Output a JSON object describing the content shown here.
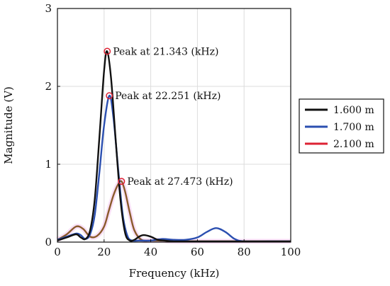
{
  "chart_data": {
    "type": "line",
    "xlabel": "Frequency (kHz)",
    "ylabel": "Magnitude (V)",
    "xlim": [
      0,
      100
    ],
    "ylim": [
      0,
      3
    ],
    "xticks": [
      "0",
      "20",
      "40",
      "60",
      "80",
      "100"
    ],
    "yticks": [
      "0",
      "1",
      "2",
      "3"
    ],
    "grid": true,
    "legend_position": "outside-right",
    "series": [
      {
        "name": "1.600 m",
        "color": "#111111",
        "x": [
          0,
          4,
          8,
          10,
          12,
          14,
          16,
          18,
          20,
          21.3,
          23,
          25,
          27,
          29,
          31,
          33,
          35,
          37,
          40,
          43,
          46,
          50,
          60,
          70,
          80,
          90,
          100
        ],
        "y": [
          0.02,
          0.06,
          0.1,
          0.06,
          0.04,
          0.15,
          0.55,
          1.35,
          2.2,
          2.45,
          2.1,
          1.3,
          0.55,
          0.12,
          0.02,
          0.03,
          0.07,
          0.09,
          0.07,
          0.03,
          0.02,
          0.01,
          0.01,
          0.01,
          0.01,
          0.01,
          0.01
        ]
      },
      {
        "name": "1.700 m",
        "color": "#2b4fb0",
        "x": [
          0,
          4,
          8,
          10,
          12,
          14,
          16,
          18,
          20,
          22.25,
          24,
          26,
          28,
          30,
          32,
          35,
          40,
          45,
          50,
          55,
          60,
          64,
          68,
          72,
          76,
          80,
          90,
          100
        ],
        "y": [
          0.03,
          0.07,
          0.11,
          0.09,
          0.04,
          0.1,
          0.35,
          0.9,
          1.5,
          1.88,
          1.6,
          0.95,
          0.35,
          0.08,
          0.02,
          0.02,
          0.02,
          0.04,
          0.03,
          0.03,
          0.06,
          0.13,
          0.18,
          0.13,
          0.04,
          0.01,
          0.01,
          0.01
        ]
      },
      {
        "name": "2.100 m",
        "color": "#dd2233",
        "x": [
          0,
          4,
          8,
          11,
          14,
          17,
          20,
          22,
          24,
          26,
          27.47,
          29,
          31,
          33,
          36,
          40,
          45,
          50,
          60,
          70,
          80,
          90,
          100
        ],
        "y": [
          0.03,
          0.1,
          0.2,
          0.17,
          0.07,
          0.08,
          0.2,
          0.4,
          0.6,
          0.74,
          0.78,
          0.65,
          0.38,
          0.15,
          0.03,
          0.02,
          0.02,
          0.01,
          0.01,
          0.01,
          0.01,
          0.01,
          0.01
        ]
      }
    ],
    "annotations": [
      {
        "text": "Peak at 21.343 (kHz)",
        "x": 21.343,
        "y": 2.45
      },
      {
        "text": "Peak at 22.251 (kHz)",
        "x": 22.251,
        "y": 1.88
      },
      {
        "text": "Peak at 27.473 (kHz)",
        "x": 27.473,
        "y": 0.78
      }
    ]
  }
}
